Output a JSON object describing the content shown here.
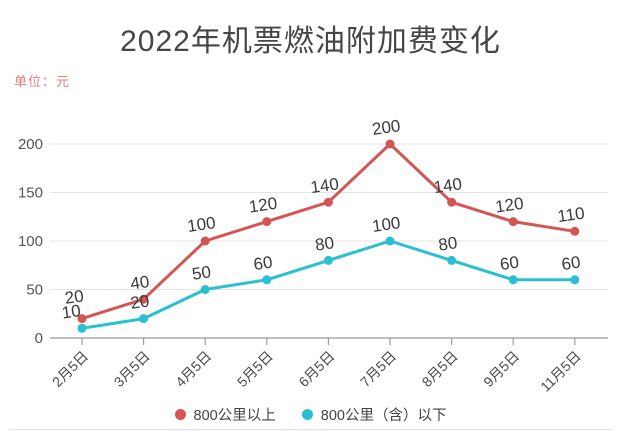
{
  "chart_data": {
    "type": "line",
    "title": "2022年机票燃油附加费变化",
    "unit": "单位：元",
    "categories": [
      "2月5日",
      "3月5日",
      "4月5日",
      "5月5日",
      "6月5日",
      "7月5日",
      "8月5日",
      "9月5日",
      "11月5日"
    ],
    "series": [
      {
        "name": "800公里以上",
        "color": "#d45653",
        "values": [
          20,
          40,
          100,
          120,
          140,
          200,
          140,
          120,
          110
        ]
      },
      {
        "name": "800公里（含）以下",
        "color": "#28c0d2",
        "values": [
          10,
          20,
          50,
          60,
          80,
          100,
          80,
          60,
          60
        ]
      }
    ],
    "ylim": [
      0,
      200
    ],
    "yticks": [
      0,
      50,
      100,
      150,
      200
    ],
    "grid": true,
    "data_labels": true,
    "legend_position": "bottom"
  },
  "legend": {
    "items": [
      {
        "label": "800公里以上",
        "color": "#d45653"
      },
      {
        "label": "800公里（含）以下",
        "color": "#28c0d2"
      }
    ]
  },
  "colors": {
    "grid": "#e4e4e4",
    "axis": "#9b9b9b",
    "y_tick_text": "#565656",
    "x_tick_text": "#4a4a4a",
    "value_label_text": "#3a3a3a",
    "title_text": "#464646",
    "unit_text": "#dd807c",
    "divider": "#e3e3e3"
  }
}
